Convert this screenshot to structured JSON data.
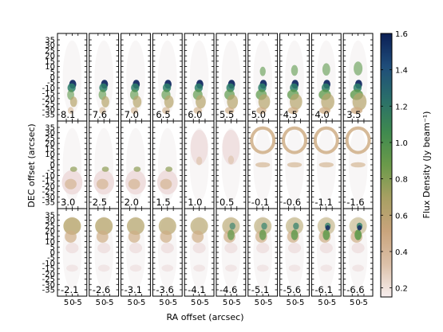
{
  "chart_data": {
    "type": "heatmap",
    "title": "",
    "xlabel": "RA offset (arcsec)",
    "ylabel": "DEC offset (arcsec)",
    "x_tick_labels": [
      "5",
      "0",
      "-5"
    ],
    "y_tick_labels": [
      "35",
      "30",
      "25",
      "20",
      "15",
      "10",
      "5",
      "0",
      "-5",
      "-10",
      "-15",
      "-20",
      "-25",
      "-30",
      "-35"
    ],
    "panel_labels": [
      "8.1",
      "7.6",
      "7.0",
      "6.5",
      "6.0",
      "5.5",
      "5.0",
      "4.5",
      "4.0",
      "3.5",
      "3.0",
      "2.5",
      "2.0",
      "1.5",
      "1.0",
      "0.5",
      "-0.1",
      "-0.6",
      "-1.1",
      "-1.6",
      "-2.1",
      "-2.6",
      "-3.1",
      "-3.6",
      "-4.1",
      "-4.6",
      "-5.1",
      "-5.6",
      "-6.1",
      "-6.6"
    ],
    "grid": false,
    "colorbar": {
      "label": "Flux Density (Jy beam$^{-1}$)",
      "label_display": "Flux Density (Jy beam⁻¹)",
      "range": [
        0.15,
        1.6
      ],
      "tick_labels": [
        "0.2",
        "0.4",
        "0.6",
        "0.8",
        "1.0",
        "1.2",
        "1.4",
        "1.6"
      ],
      "colors": [
        "#f7eeee",
        "#dcc0a8",
        "#c9a47c",
        "#a8a063",
        "#6b9a4a",
        "#3f8a4f",
        "#2a6f6a",
        "#1f4d7a",
        "#0b1f55"
      ]
    }
  }
}
